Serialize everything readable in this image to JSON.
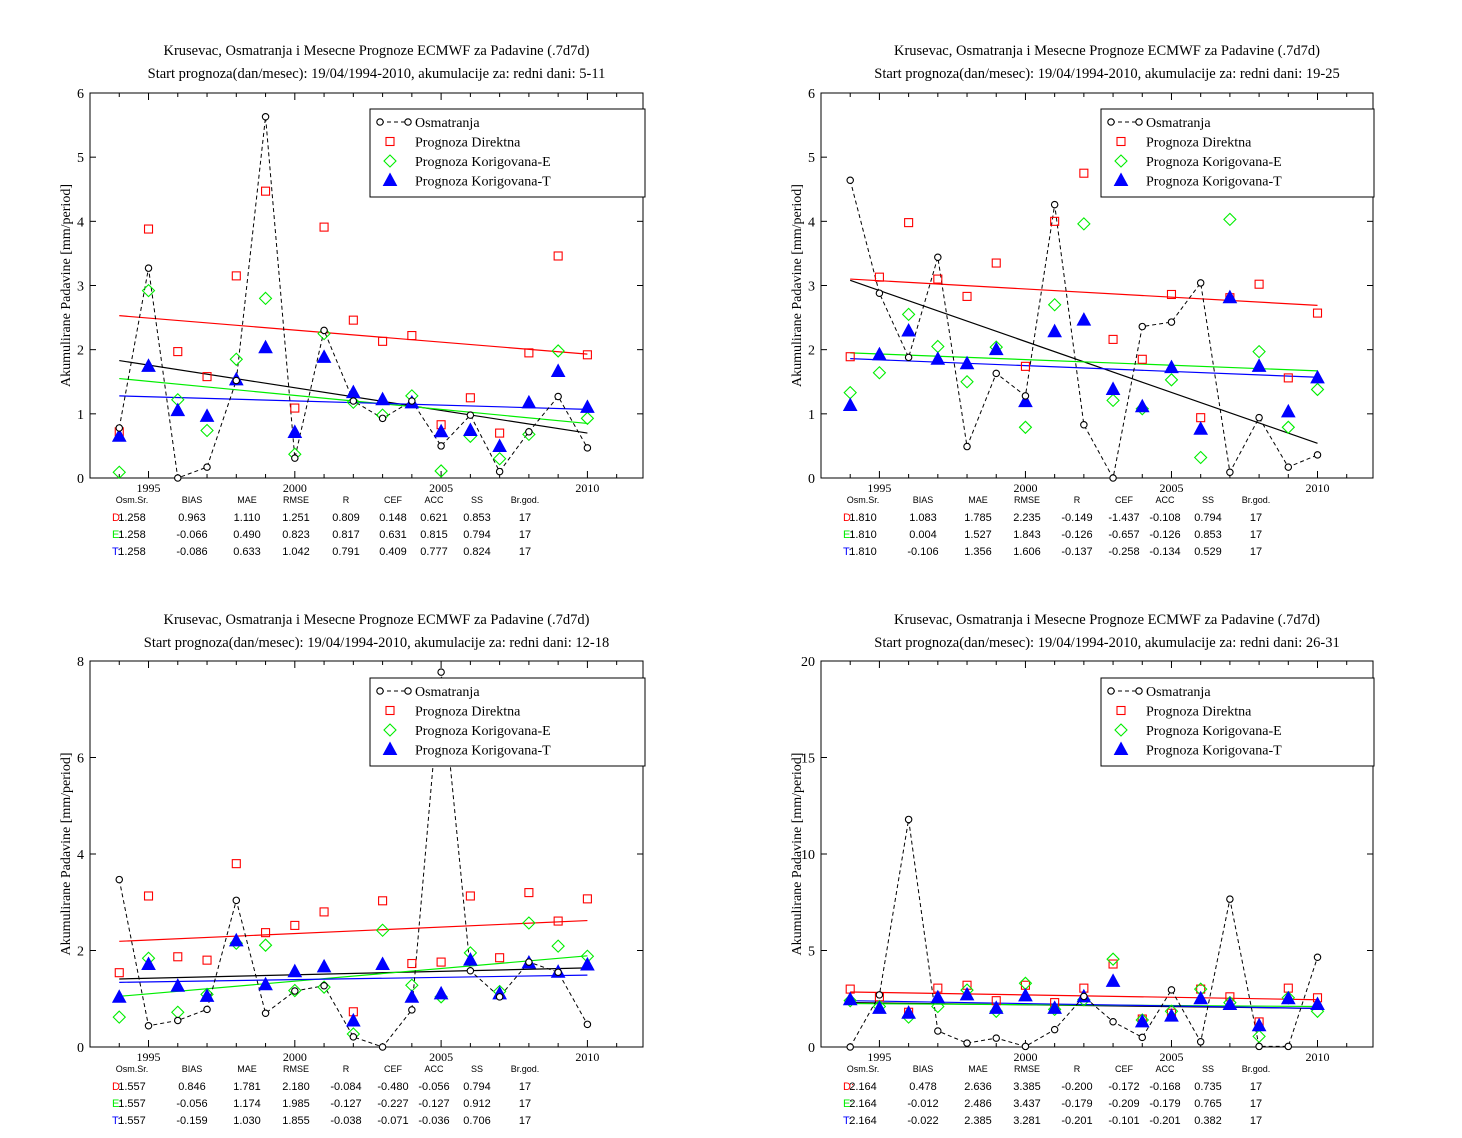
{
  "legend_labels": {
    "obs": "Osmatranja",
    "direct": "Prognoza Direktna",
    "corr_e": "Prognoza Korigovana-E",
    "corr_t": "Prognoza Korigovana-T"
  },
  "colors": {
    "obs": "#000000",
    "direct": "#ff0000",
    "corr_e": "#00ee00",
    "corr_t": "#0000ff"
  },
  "stats_headers": [
    "Osm.Sr.",
    "BIAS",
    "MAE",
    "RMSE",
    "R",
    "CEF",
    "ACC",
    "SS",
    "Br.god."
  ],
  "chart_data": [
    {
      "type": "scatter",
      "title": "Krusevac, Osmatranja i Mesecne Prognoze ECMWF za Padavine (.7d7d)",
      "subtitle": "Start prognoza(dan/mesec): 19/04/1994-2010, akumulacije za: redni dani: 5-11",
      "ylabel": "Akumulirane Padavine [mm/period]",
      "xlabel": "",
      "xlim": [
        1993,
        2011.9
      ],
      "ylim": [
        0,
        6
      ],
      "xticks": [
        1995,
        2000,
        2005,
        2010
      ],
      "yticks": [
        0,
        1,
        2,
        3,
        4,
        5,
        6
      ],
      "legend_position": "top-right",
      "x": [
        1994,
        1995,
        1996,
        1997,
        1998,
        1999,
        2000,
        2001,
        2002,
        2003,
        2004,
        2005,
        2006,
        2007,
        2008,
        2009,
        2010
      ],
      "series": [
        {
          "name": "Osmatranja",
          "style": "obs",
          "values": [
            0.78,
            3.27,
            0.0,
            0.17,
            1.52,
            5.63,
            0.31,
            2.3,
            1.2,
            0.93,
            1.2,
            0.5,
            0.98,
            0.1,
            0.72,
            1.27,
            0.47
          ]
        },
        {
          "name": "Prognoza Direktna",
          "style": "direct",
          "values": [
            0.72,
            3.88,
            1.97,
            1.58,
            3.15,
            4.47,
            1.09,
            3.91,
            2.46,
            2.13,
            2.22,
            0.83,
            1.25,
            0.7,
            1.95,
            3.46,
            1.92
          ]
        },
        {
          "name": "Prognoza Korigovana-E",
          "style": "corr_e",
          "values": [
            0.09,
            2.92,
            1.22,
            0.74,
            1.85,
            2.8,
            0.37,
            2.25,
            1.18,
            0.98,
            1.28,
            0.11,
            0.65,
            0.3,
            0.68,
            1.98,
            0.93
          ]
        },
        {
          "name": "Prognoza Korigovana-T",
          "style": "corr_t",
          "values": [
            0.65,
            1.74,
            1.05,
            0.96,
            1.53,
            2.03,
            0.71,
            1.88,
            1.33,
            1.22,
            1.17,
            0.72,
            0.74,
            0.49,
            1.17,
            1.66,
            1.1
          ]
        }
      ],
      "trend_lines": [
        {
          "style": "obs",
          "y_start": 1.83,
          "y_end": 0.7
        },
        {
          "style": "direct",
          "y_start": 2.53,
          "y_end": 1.93
        },
        {
          "style": "corr_e",
          "y_start": 1.55,
          "y_end": 0.85
        },
        {
          "style": "corr_t",
          "y_start": 1.28,
          "y_end": 1.07
        }
      ],
      "stats": [
        {
          "label": "D:",
          "style": "direct",
          "values": [
            "1.258",
            "0.963",
            "1.110",
            "1.251",
            "0.809",
            "0.148",
            "0.621",
            "0.853",
            "17"
          ]
        },
        {
          "label": "E:",
          "style": "corr_e",
          "values": [
            "1.258",
            "-0.066",
            "0.490",
            "0.823",
            "0.817",
            "0.631",
            "0.815",
            "0.794",
            "17"
          ]
        },
        {
          "label": "T:",
          "style": "corr_t",
          "values": [
            "1.258",
            "-0.086",
            "0.633",
            "1.042",
            "0.791",
            "0.409",
            "0.777",
            "0.824",
            "17"
          ]
        }
      ]
    },
    {
      "type": "scatter",
      "title": "Krusevac, Osmatranja i Mesecne Prognoze ECMWF za Padavine (.7d7d)",
      "subtitle": "Start prognoza(dan/mesec): 19/04/1994-2010, akumulacije za: redni dani: 19-25",
      "ylabel": "Akumulirane Padavine [mm/period]",
      "xlabel": "",
      "xlim": [
        1993,
        2011.9
      ],
      "ylim": [
        0,
        6
      ],
      "xticks": [
        1995,
        2000,
        2005,
        2010
      ],
      "yticks": [
        0,
        1,
        2,
        3,
        4,
        5,
        6
      ],
      "legend_position": "top-right",
      "x": [
        1994,
        1995,
        1996,
        1997,
        1998,
        1999,
        2000,
        2001,
        2002,
        2003,
        2004,
        2005,
        2006,
        2007,
        2008,
        2009,
        2010
      ],
      "series": [
        {
          "name": "Osmatranja",
          "style": "obs",
          "values": [
            4.64,
            2.88,
            1.88,
            3.44,
            0.49,
            1.63,
            1.28,
            4.26,
            0.83,
            0.0,
            2.36,
            2.43,
            3.04,
            0.09,
            0.94,
            0.17,
            0.36
          ]
        },
        {
          "name": "Prognoza Direktna",
          "style": "direct",
          "values": [
            1.89,
            3.13,
            3.98,
            3.1,
            2.83,
            3.35,
            1.74,
            4.0,
            4.75,
            2.16,
            1.85,
            2.86,
            0.94,
            2.81,
            3.02,
            1.56,
            2.57
          ]
        },
        {
          "name": "Prognoza Korigovana-E",
          "style": "corr_e",
          "values": [
            1.33,
            1.64,
            2.55,
            2.05,
            1.5,
            2.04,
            0.79,
            2.7,
            3.96,
            1.21,
            1.08,
            1.53,
            0.32,
            4.03,
            1.97,
            0.79,
            1.38
          ]
        },
        {
          "name": "Prognoza Korigovana-T",
          "style": "corr_t",
          "values": [
            1.13,
            1.92,
            2.29,
            1.85,
            1.78,
            2.0,
            1.19,
            2.28,
            2.46,
            1.38,
            1.11,
            1.72,
            0.76,
            2.81,
            1.74,
            1.03,
            1.56
          ]
        }
      ],
      "trend_lines": [
        {
          "style": "obs",
          "y_start": 3.08,
          "y_end": 0.54
        },
        {
          "style": "direct",
          "y_start": 3.1,
          "y_end": 2.69
        },
        {
          "style": "corr_e",
          "y_start": 1.95,
          "y_end": 1.67
        },
        {
          "style": "corr_t",
          "y_start": 1.86,
          "y_end": 1.57
        }
      ],
      "stats": [
        {
          "label": "D:",
          "style": "direct",
          "values": [
            "1.810",
            "1.083",
            "1.785",
            "2.235",
            "-0.149",
            "-1.437",
            "-0.108",
            "0.794",
            "17"
          ]
        },
        {
          "label": "E:",
          "style": "corr_e",
          "values": [
            "1.810",
            "0.004",
            "1.527",
            "1.843",
            "-0.126",
            "-0.657",
            "-0.126",
            "0.853",
            "17"
          ]
        },
        {
          "label": "T:",
          "style": "corr_t",
          "values": [
            "1.810",
            "-0.106",
            "1.356",
            "1.606",
            "-0.137",
            "-0.258",
            "-0.134",
            "0.529",
            "17"
          ]
        }
      ]
    },
    {
      "type": "scatter",
      "title": "Krusevac, Osmatranja i Mesecne Prognoze ECMWF za Padavine (.7d7d)",
      "subtitle": "Start prognoza(dan/mesec): 19/04/1994-2010, akumulacije za: redni dani: 12-18",
      "ylabel": "Akumulirane Padavine [mm/period]",
      "xlabel": "",
      "xlim": [
        1993,
        2011.9
      ],
      "ylim": [
        0,
        8
      ],
      "xticks": [
        1995,
        2000,
        2005,
        2010
      ],
      "yticks": [
        0,
        2,
        4,
        6,
        8
      ],
      "legend_position": "top-right",
      "x": [
        1994,
        1995,
        1996,
        1997,
        1998,
        1999,
        2000,
        2001,
        2002,
        2003,
        2004,
        2005,
        2006,
        2007,
        2008,
        2009,
        2010
      ],
      "series": [
        {
          "name": "Osmatranja",
          "style": "obs",
          "values": [
            3.47,
            0.44,
            0.55,
            0.78,
            3.04,
            0.7,
            1.16,
            1.27,
            0.21,
            0.0,
            0.77,
            7.77,
            1.58,
            1.04,
            1.76,
            1.55,
            0.47
          ]
        },
        {
          "name": "Prognoza Direktna",
          "style": "direct",
          "values": [
            1.54,
            3.13,
            1.87,
            1.8,
            3.8,
            2.37,
            2.52,
            2.8,
            0.73,
            3.03,
            1.73,
            1.76,
            3.13,
            1.85,
            3.2,
            2.61,
            3.07
          ]
        },
        {
          "name": "Prognoza Korigovana-E",
          "style": "corr_e",
          "values": [
            0.62,
            1.84,
            0.72,
            1.09,
            2.15,
            2.11,
            1.17,
            1.24,
            0.27,
            2.42,
            1.28,
            1.04,
            1.95,
            1.15,
            2.57,
            2.09,
            1.88
          ]
        },
        {
          "name": "Prognoza Korigovana-T",
          "style": "corr_t",
          "values": [
            1.03,
            1.71,
            1.26,
            1.05,
            2.2,
            1.29,
            1.56,
            1.66,
            0.54,
            1.71,
            1.03,
            1.1,
            1.8,
            1.1,
            1.74,
            1.55,
            1.7
          ]
        }
      ],
      "trend_lines": [
        {
          "style": "obs",
          "y_start": 1.41,
          "y_end": 1.64
        },
        {
          "style": "direct",
          "y_start": 2.19,
          "y_end": 2.62
        },
        {
          "style": "corr_e",
          "y_start": 1.05,
          "y_end": 1.89
        },
        {
          "style": "corr_t",
          "y_start": 1.34,
          "y_end": 1.49
        }
      ],
      "stats": [
        {
          "label": "D:",
          "style": "direct",
          "values": [
            "1.557",
            "0.846",
            "1.781",
            "2.180",
            "-0.084",
            "-0.480",
            "-0.056",
            "0.794",
            "17"
          ]
        },
        {
          "label": "E:",
          "style": "corr_e",
          "values": [
            "1.557",
            "-0.056",
            "1.174",
            "1.985",
            "-0.127",
            "-0.227",
            "-0.127",
            "0.912",
            "17"
          ]
        },
        {
          "label": "T:",
          "style": "corr_t",
          "values": [
            "1.557",
            "-0.159",
            "1.030",
            "1.855",
            "-0.038",
            "-0.071",
            "-0.036",
            "0.706",
            "17"
          ]
        }
      ]
    },
    {
      "type": "scatter",
      "title": "Krusevac, Osmatranja i Mesecne Prognoze ECMWF za Padavine (.7d7d)",
      "subtitle": "Start prognoza(dan/mesec): 19/04/1994-2010, akumulacije za: redni dani: 26-31",
      "ylabel": "Akumulirane Padavine [mm/period]",
      "xlabel": "",
      "xlim": [
        1993,
        2011.9
      ],
      "ylim": [
        0,
        20
      ],
      "xticks": [
        1995,
        2000,
        2005,
        2010
      ],
      "yticks": [
        0,
        5,
        10,
        15,
        20
      ],
      "legend_position": "top-right",
      "x": [
        1994,
        1995,
        1996,
        1997,
        1998,
        1999,
        2000,
        2001,
        2002,
        2003,
        2004,
        2005,
        2006,
        2007,
        2008,
        2009,
        2010
      ],
      "series": [
        {
          "name": "Osmatranja",
          "style": "obs",
          "values": [
            0.0,
            2.7,
            11.79,
            0.83,
            0.2,
            0.46,
            0.03,
            0.9,
            2.62,
            1.31,
            0.5,
            2.96,
            0.27,
            7.66,
            0.03,
            0.03,
            4.65
          ]
        },
        {
          "name": "Prognoza Direktna",
          "style": "direct",
          "values": [
            3.0,
            2.6,
            1.8,
            3.05,
            3.2,
            2.4,
            3.2,
            2.3,
            3.05,
            4.3,
            1.45,
            1.75,
            3.0,
            2.6,
            1.3,
            3.05,
            2.55
          ]
        },
        {
          "name": "Prognoza Korigovana-E",
          "style": "corr_e",
          "values": [
            2.4,
            2.1,
            1.55,
            2.1,
            2.95,
            1.85,
            3.3,
            1.95,
            2.45,
            4.55,
            1.4,
            1.85,
            3.0,
            2.3,
            0.55,
            2.55,
            1.85
          ]
        },
        {
          "name": "Prognoza Korigovana-T",
          "style": "corr_t",
          "values": [
            2.45,
            2.0,
            1.75,
            2.55,
            2.7,
            2.0,
            2.65,
            2.0,
            2.6,
            3.4,
            1.3,
            1.6,
            2.5,
            2.2,
            1.1,
            2.5,
            2.2
          ]
        }
      ],
      "trend_lines": [
        {
          "style": "obs",
          "y_start": 2.3,
          "y_end": 2.0
        },
        {
          "style": "direct",
          "y_start": 2.85,
          "y_end": 2.45
        },
        {
          "style": "corr_e",
          "y_start": 2.25,
          "y_end": 2.1
        },
        {
          "style": "corr_t",
          "y_start": 2.4,
          "y_end": 2.0
        }
      ],
      "stats": [
        {
          "label": "D:",
          "style": "direct",
          "values": [
            "2.164",
            "0.478",
            "2.636",
            "3.385",
            "-0.200",
            "-0.172",
            "-0.168",
            "0.735",
            "17"
          ]
        },
        {
          "label": "E:",
          "style": "corr_e",
          "values": [
            "2.164",
            "-0.012",
            "2.486",
            "3.437",
            "-0.179",
            "-0.209",
            "-0.179",
            "0.765",
            "17"
          ]
        },
        {
          "label": "T:",
          "style": "corr_t",
          "values": [
            "2.164",
            "-0.022",
            "2.385",
            "3.281",
            "-0.201",
            "-0.101",
            "-0.201",
            "0.382",
            "17"
          ]
        }
      ]
    }
  ]
}
